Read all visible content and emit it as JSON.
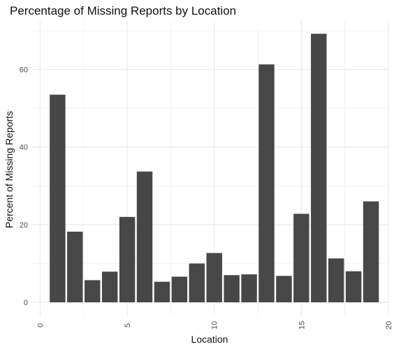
{
  "chart_data": {
    "type": "bar",
    "title": "Percentage of Missing Reports by Location",
    "xlabel": "Location",
    "ylabel": "Percent of Missing Reports",
    "x": [
      1,
      2,
      3,
      4,
      5,
      6,
      7,
      8,
      9,
      10,
      11,
      12,
      13,
      14,
      15,
      16,
      17,
      18,
      19
    ],
    "values": [
      53.5,
      18.2,
      5.7,
      7.9,
      22.0,
      33.7,
      5.3,
      6.6,
      10.0,
      12.7,
      7.0,
      7.2,
      61.3,
      6.8,
      22.8,
      69.2,
      11.3,
      8.0,
      26.0
    ],
    "xlim": [
      -0.5,
      20
    ],
    "ylim": [
      -3.4,
      72.5
    ],
    "x_ticks": [
      0,
      5,
      10,
      15,
      20
    ],
    "x_tick_labels": [
      "0",
      "5",
      "10",
      "15",
      "20"
    ],
    "y_ticks": [
      0,
      20,
      40,
      60
    ],
    "y_tick_labels": [
      "0",
      "20",
      "40",
      "60"
    ],
    "grid": true,
    "legend": "none",
    "bar_color": "#474747",
    "grid_color": "#ebebeb"
  }
}
